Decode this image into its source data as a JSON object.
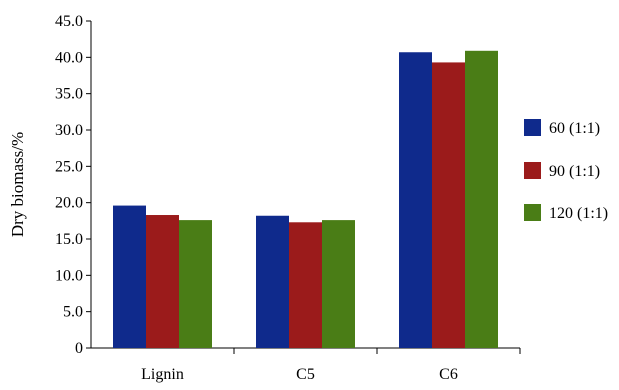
{
  "chart_data": {
    "type": "bar",
    "title": "",
    "xlabel": "",
    "ylabel": "Dry biomass/%",
    "ylim": [
      0,
      45
    ],
    "yticks": [
      "0",
      "5.0",
      "10.0",
      "15.0",
      "20.0",
      "25.0",
      "30.0",
      "35.0",
      "40.0",
      "45.0"
    ],
    "ytick_values": [
      0,
      5,
      10,
      15,
      20,
      25,
      30,
      35,
      40,
      45
    ],
    "categories": [
      "Lignin",
      "C5",
      "C6"
    ],
    "grid": false,
    "legend_position": "right",
    "series": [
      {
        "name": "60 (1:1)",
        "color": "#0f2a8c",
        "values": [
          19.6,
          18.2,
          40.7
        ]
      },
      {
        "name": "90 (1:1)",
        "color": "#9b1b1b",
        "values": [
          18.3,
          17.3,
          39.3
        ]
      },
      {
        "name": "120 (1:1)",
        "color": "#4a7d16",
        "values": [
          17.6,
          17.6,
          40.9
        ]
      }
    ]
  }
}
